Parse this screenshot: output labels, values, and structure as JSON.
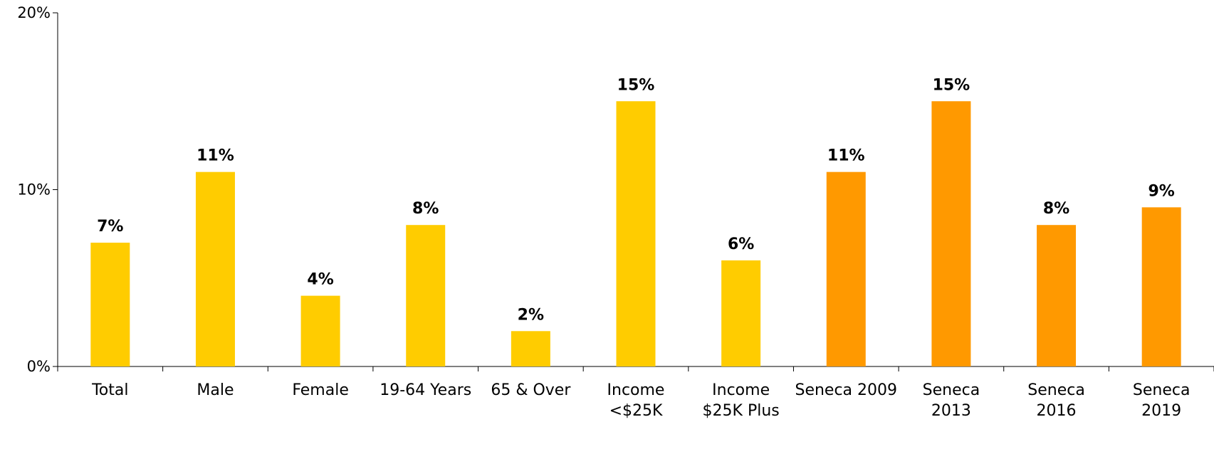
{
  "chart_data": {
    "type": "bar",
    "categories": [
      [
        "Total"
      ],
      [
        "Male"
      ],
      [
        "Female"
      ],
      [
        "19-64 Years"
      ],
      [
        "65 & Over"
      ],
      [
        "Income",
        "<$25K"
      ],
      [
        "Income",
        "$25K Plus"
      ],
      [
        "Seneca 2009"
      ],
      [
        "Seneca",
        "2013"
      ],
      [
        "Seneca",
        "2016"
      ],
      [
        "Seneca",
        "2019"
      ]
    ],
    "values": [
      7,
      11,
      4,
      8,
      2,
      15,
      6,
      11,
      15,
      8,
      9
    ],
    "value_labels": [
      "7%",
      "11%",
      "4%",
      "8%",
      "2%",
      "15%",
      "6%",
      "11%",
      "15%",
      "8%",
      "9%"
    ],
    "ylim": [
      0,
      20
    ],
    "y_ticks": [
      0,
      10,
      20
    ],
    "y_tick_labels": [
      "0%",
      "10%",
      "20%"
    ],
    "colors": {
      "primary": "#FFCC00",
      "highlight": "#FF9900"
    },
    "bar_colors": [
      "primary",
      "primary",
      "primary",
      "primary",
      "primary",
      "primary",
      "primary",
      "highlight",
      "highlight",
      "highlight",
      "highlight"
    ],
    "grid": false,
    "legend": "none"
  }
}
